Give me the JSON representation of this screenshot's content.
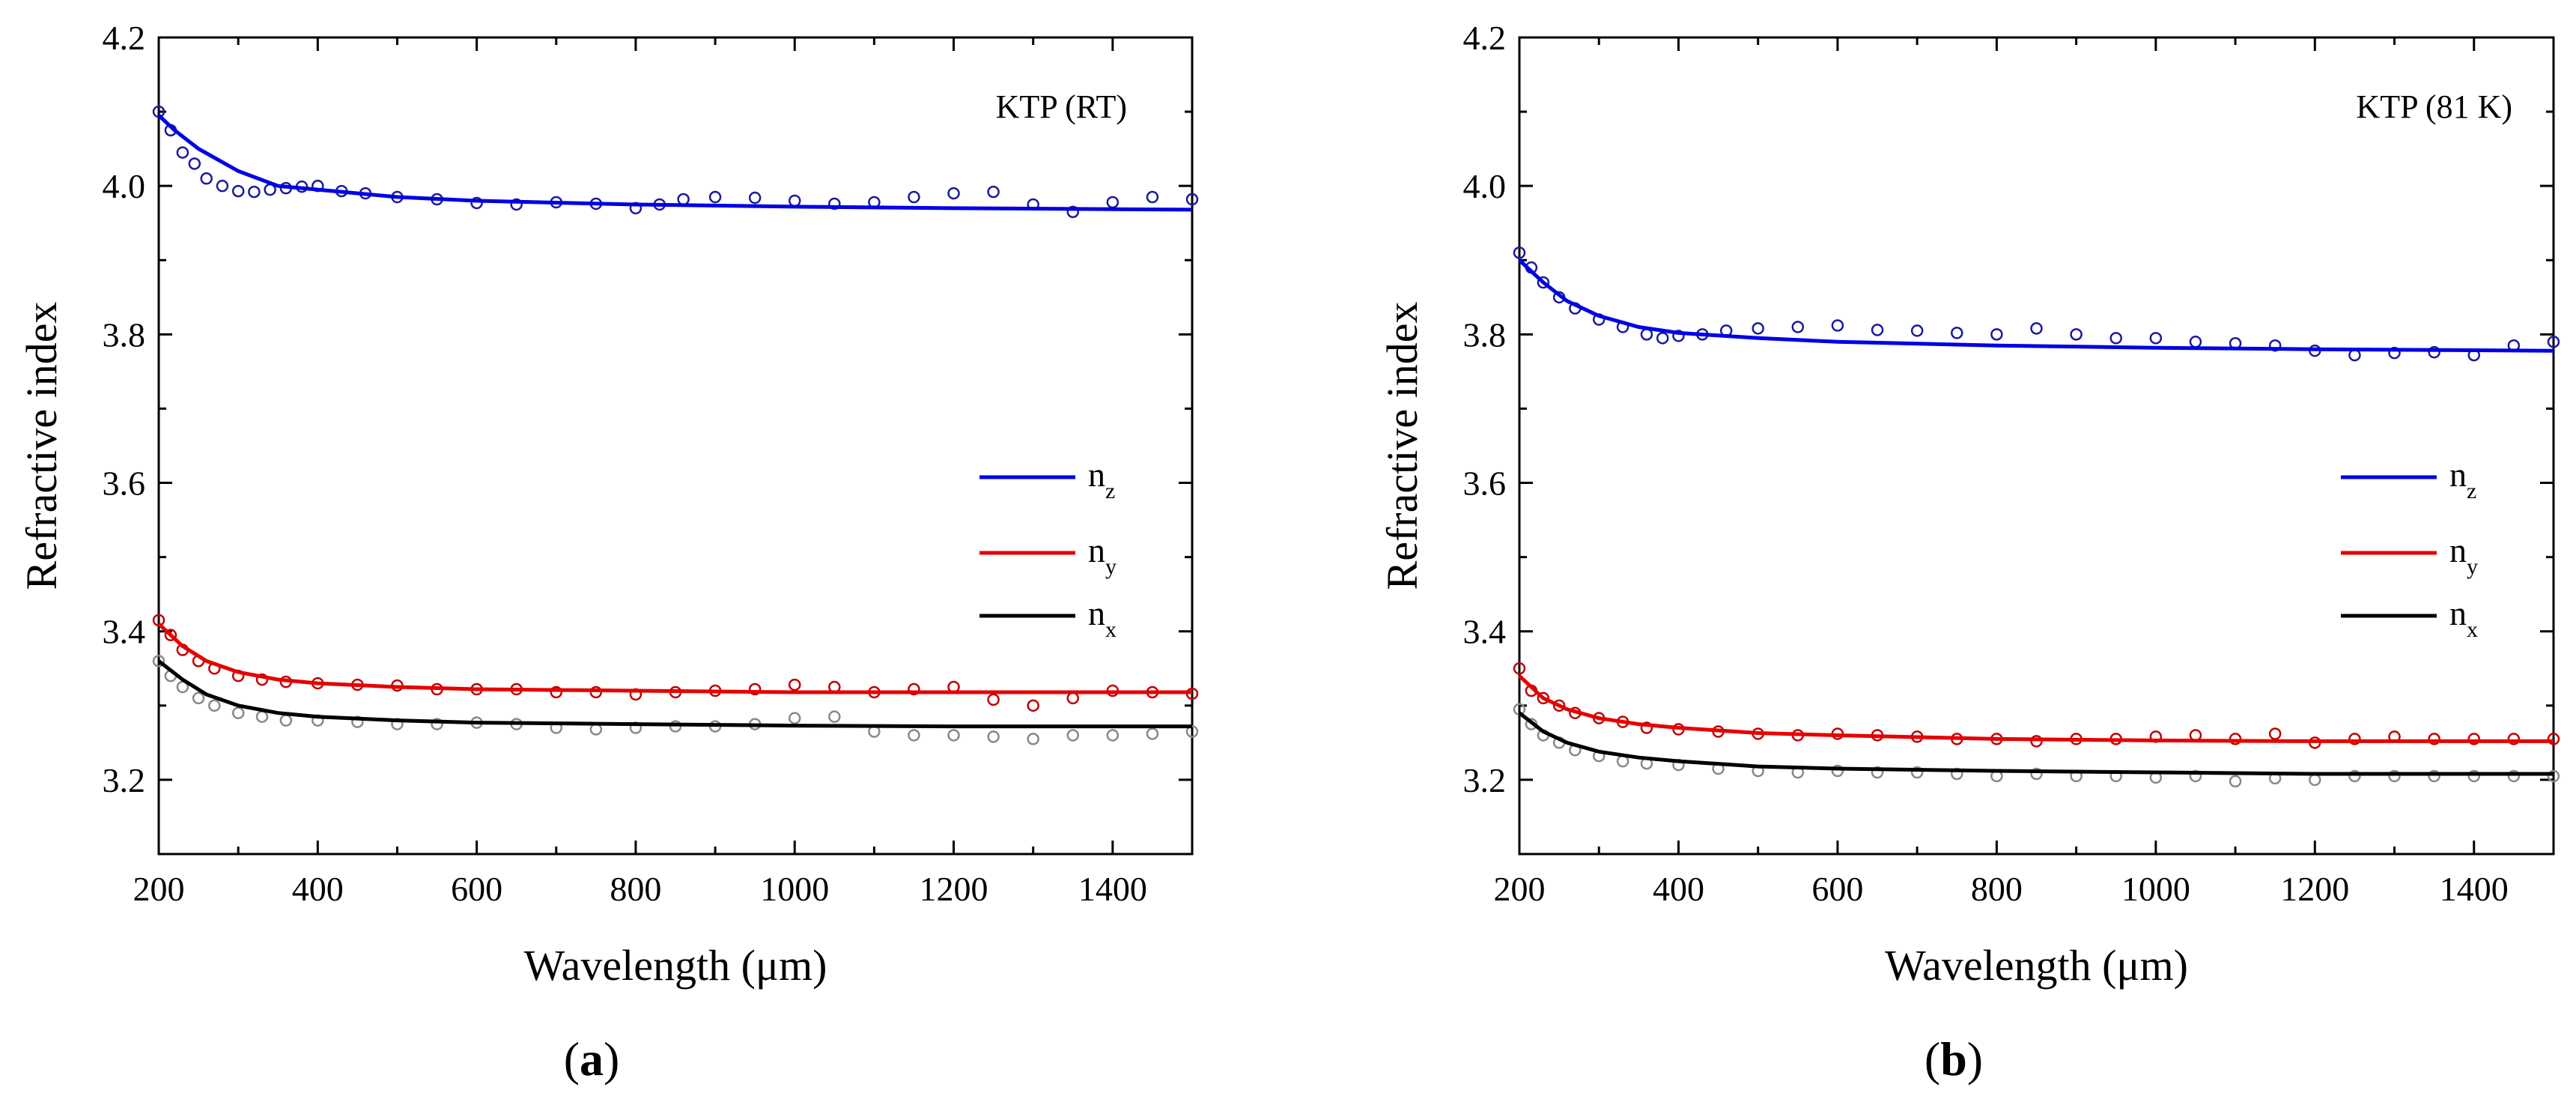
{
  "chart_data": [
    {
      "type": "line",
      "panel_letter": "a",
      "annotation": "KTP (RT)",
      "xlabel": "Wavelength (μm)",
      "ylabel": "Refractive index",
      "xlim": [
        200,
        1500
      ],
      "ylim": [
        3.1,
        4.2
      ],
      "xticks": [
        200,
        400,
        600,
        800,
        1000,
        1200,
        1400
      ],
      "yticks": [
        3.2,
        3.4,
        3.6,
        3.8,
        4.0,
        4.2
      ],
      "legend_position": "center-right",
      "series": [
        {
          "name": "n",
          "sub": "z",
          "color": "#0000e6",
          "marker_color": "#1a1a9a",
          "fit": {
            "x": [
              200,
              220,
              250,
              300,
              350,
              400,
              500,
              600,
              800,
              1000,
              1200,
              1500
            ],
            "y": [
              4.095,
              4.075,
              4.05,
              4.02,
              4.0,
              3.995,
              3.985,
              3.98,
              3.975,
              3.972,
              3.97,
              3.968
            ]
          },
          "measured": {
            "x": [
              200,
              215,
              230,
              245,
              260,
              280,
              300,
              320,
              340,
              360,
              380,
              400,
              430,
              460,
              500,
              550,
              600,
              650,
              700,
              750,
              800,
              830,
              860,
              900,
              950,
              1000,
              1050,
              1100,
              1150,
              1200,
              1250,
              1300,
              1350,
              1400,
              1450,
              1500
            ],
            "y": [
              4.1,
              4.075,
              4.045,
              4.03,
              4.01,
              4.0,
              3.993,
              3.992,
              3.995,
              3.997,
              3.999,
              4.0,
              3.993,
              3.99,
              3.985,
              3.982,
              3.977,
              3.975,
              3.978,
              3.976,
              3.97,
              3.975,
              3.982,
              3.985,
              3.984,
              3.98,
              3.976,
              3.978,
              3.985,
              3.99,
              3.992,
              3.975,
              3.965,
              3.978,
              3.985,
              3.982
            ]
          }
        },
        {
          "name": "n",
          "sub": "y",
          "color": "#e60000",
          "marker_color": "#c00000",
          "fit": {
            "x": [
              200,
              230,
              260,
              300,
              350,
              400,
              500,
              600,
              800,
              1000,
              1200,
              1500
            ],
            "y": [
              3.41,
              3.38,
              3.36,
              3.345,
              3.335,
              3.33,
              3.325,
              3.322,
              3.32,
              3.318,
              3.318,
              3.318
            ]
          },
          "measured": {
            "x": [
              200,
              215,
              230,
              250,
              270,
              300,
              330,
              360,
              400,
              450,
              500,
              550,
              600,
              650,
              700,
              750,
              800,
              850,
              900,
              950,
              1000,
              1050,
              1100,
              1150,
              1200,
              1250,
              1300,
              1350,
              1400,
              1450,
              1500
            ],
            "y": [
              3.415,
              3.395,
              3.375,
              3.36,
              3.35,
              3.34,
              3.335,
              3.332,
              3.33,
              3.328,
              3.327,
              3.322,
              3.322,
              3.322,
              3.318,
              3.318,
              3.315,
              3.318,
              3.32,
              3.322,
              3.328,
              3.325,
              3.318,
              3.322,
              3.325,
              3.308,
              3.3,
              3.31,
              3.32,
              3.318,
              3.316
            ]
          }
        },
        {
          "name": "n",
          "sub": "x",
          "color": "#000000",
          "marker_color": "#888888",
          "fit": {
            "x": [
              200,
              230,
              260,
              300,
              350,
              400,
              500,
              600,
              800,
              1000,
              1200,
              1500
            ],
            "y": [
              3.36,
              3.335,
              3.315,
              3.3,
              3.29,
              3.285,
              3.28,
              3.277,
              3.275,
              3.273,
              3.272,
              3.272
            ]
          },
          "measured": {
            "x": [
              200,
              215,
              230,
              250,
              270,
              300,
              330,
              360,
              400,
              450,
              500,
              550,
              600,
              650,
              700,
              750,
              800,
              850,
              900,
              950,
              1000,
              1050,
              1100,
              1150,
              1200,
              1250,
              1300,
              1350,
              1400,
              1450,
              1500
            ],
            "y": [
              3.36,
              3.34,
              3.325,
              3.31,
              3.3,
              3.29,
              3.285,
              3.28,
              3.28,
              3.278,
              3.275,
              3.275,
              3.277,
              3.275,
              3.27,
              3.268,
              3.27,
              3.272,
              3.272,
              3.275,
              3.283,
              3.285,
              3.265,
              3.26,
              3.26,
              3.258,
              3.255,
              3.26,
              3.26,
              3.262,
              3.265
            ]
          }
        }
      ]
    },
    {
      "type": "line",
      "panel_letter": "b",
      "annotation": "KTP (81 K)",
      "xlabel": "Wavelength (μm)",
      "ylabel": "Refractive index",
      "xlim": [
        200,
        1500
      ],
      "ylim": [
        3.1,
        4.2
      ],
      "xticks": [
        200,
        400,
        600,
        800,
        1000,
        1200,
        1400
      ],
      "yticks": [
        3.2,
        3.4,
        3.6,
        3.8,
        4.0,
        4.2
      ],
      "legend_position": "center-right",
      "series": [
        {
          "name": "n",
          "sub": "z",
          "color": "#0000e6",
          "marker_color": "#1a1a9a",
          "fit": {
            "x": [
              200,
              230,
              260,
              300,
              350,
              400,
              500,
              600,
              800,
              1000,
              1200,
              1500
            ],
            "y": [
              3.9,
              3.87,
              3.845,
              3.825,
              3.81,
              3.802,
              3.795,
              3.79,
              3.785,
              3.782,
              3.78,
              3.778
            ]
          },
          "measured": {
            "x": [
              200,
              215,
              230,
              250,
              270,
              300,
              330,
              360,
              380,
              400,
              430,
              460,
              500,
              550,
              600,
              650,
              700,
              750,
              800,
              850,
              900,
              950,
              1000,
              1050,
              1100,
              1150,
              1200,
              1250,
              1300,
              1350,
              1400,
              1450,
              1500
            ],
            "y": [
              3.91,
              3.89,
              3.87,
              3.85,
              3.835,
              3.82,
              3.81,
              3.8,
              3.795,
              3.798,
              3.8,
              3.805,
              3.808,
              3.81,
              3.812,
              3.806,
              3.805,
              3.802,
              3.8,
              3.808,
              3.8,
              3.795,
              3.795,
              3.79,
              3.788,
              3.785,
              3.778,
              3.772,
              3.775,
              3.776,
              3.772,
              3.785,
              3.79
            ]
          }
        },
        {
          "name": "n",
          "sub": "y",
          "color": "#e60000",
          "marker_color": "#c00000",
          "fit": {
            "x": [
              200,
              230,
              260,
              300,
              350,
              400,
              500,
              600,
              800,
              1000,
              1200,
              1500
            ],
            "y": [
              3.34,
              3.31,
              3.295,
              3.283,
              3.275,
              3.27,
              3.263,
              3.26,
              3.255,
              3.253,
              3.252,
              3.252
            ]
          },
          "measured": {
            "x": [
              200,
              215,
              230,
              250,
              270,
              300,
              330,
              360,
              400,
              450,
              500,
              550,
              600,
              650,
              700,
              750,
              800,
              850,
              900,
              950,
              1000,
              1050,
              1100,
              1150,
              1200,
              1250,
              1300,
              1350,
              1400,
              1450,
              1500
            ],
            "y": [
              3.35,
              3.32,
              3.31,
              3.3,
              3.29,
              3.283,
              3.278,
              3.27,
              3.268,
              3.265,
              3.262,
              3.26,
              3.262,
              3.26,
              3.258,
              3.255,
              3.255,
              3.252,
              3.255,
              3.255,
              3.258,
              3.26,
              3.255,
              3.262,
              3.25,
              3.255,
              3.258,
              3.255,
              3.255,
              3.255,
              3.255
            ]
          }
        },
        {
          "name": "n",
          "sub": "x",
          "color": "#000000",
          "marker_color": "#888888",
          "fit": {
            "x": [
              200,
              230,
              260,
              300,
              350,
              400,
              500,
              600,
              800,
              1000,
              1200,
              1500
            ],
            "y": [
              3.29,
              3.265,
              3.25,
              3.238,
              3.23,
              3.225,
              3.218,
              3.215,
              3.212,
              3.21,
              3.208,
              3.208
            ]
          },
          "measured": {
            "x": [
              200,
              215,
              230,
              250,
              270,
              300,
              330,
              360,
              400,
              450,
              500,
              550,
              600,
              650,
              700,
              750,
              800,
              850,
              900,
              950,
              1000,
              1050,
              1100,
              1150,
              1200,
              1250,
              1300,
              1350,
              1400,
              1450,
              1500
            ],
            "y": [
              3.295,
              3.275,
              3.26,
              3.25,
              3.24,
              3.232,
              3.225,
              3.222,
              3.22,
              3.215,
              3.212,
              3.21,
              3.212,
              3.21,
              3.21,
              3.208,
              3.205,
              3.208,
              3.205,
              3.205,
              3.203,
              3.205,
              3.198,
              3.202,
              3.2,
              3.205,
              3.205,
              3.205,
              3.205,
              3.205,
              3.205
            ]
          }
        }
      ]
    }
  ]
}
